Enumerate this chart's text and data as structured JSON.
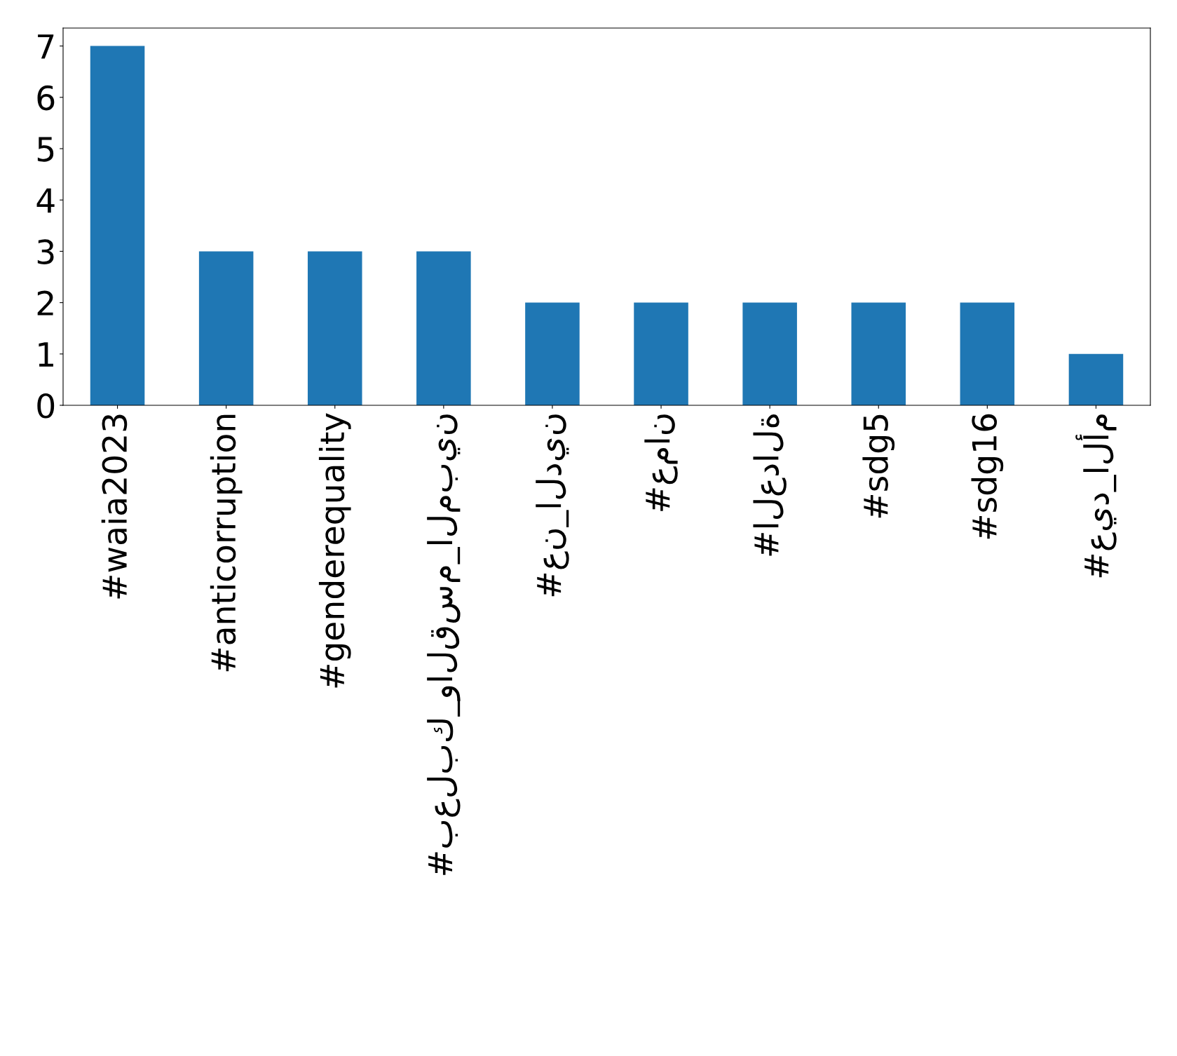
{
  "chart_data": {
    "type": "bar",
    "categories": [
      "#waia2023",
      "#anticorruption",
      "#genderequality",
      "#بعلبك_والقسم_المبين",
      "#عن_الدين",
      "#عمان",
      "#العدالة",
      "#sdg5",
      "#sdg16",
      "#عيد_الأم"
    ],
    "values": [
      7,
      3,
      3,
      3,
      2,
      2,
      2,
      2,
      2,
      1
    ],
    "color": "#1f77b4",
    "ylim": [
      0,
      7.35
    ],
    "yticks": [
      0,
      1,
      2,
      3,
      4,
      5,
      6,
      7
    ],
    "grid": false,
    "legend": false
  }
}
